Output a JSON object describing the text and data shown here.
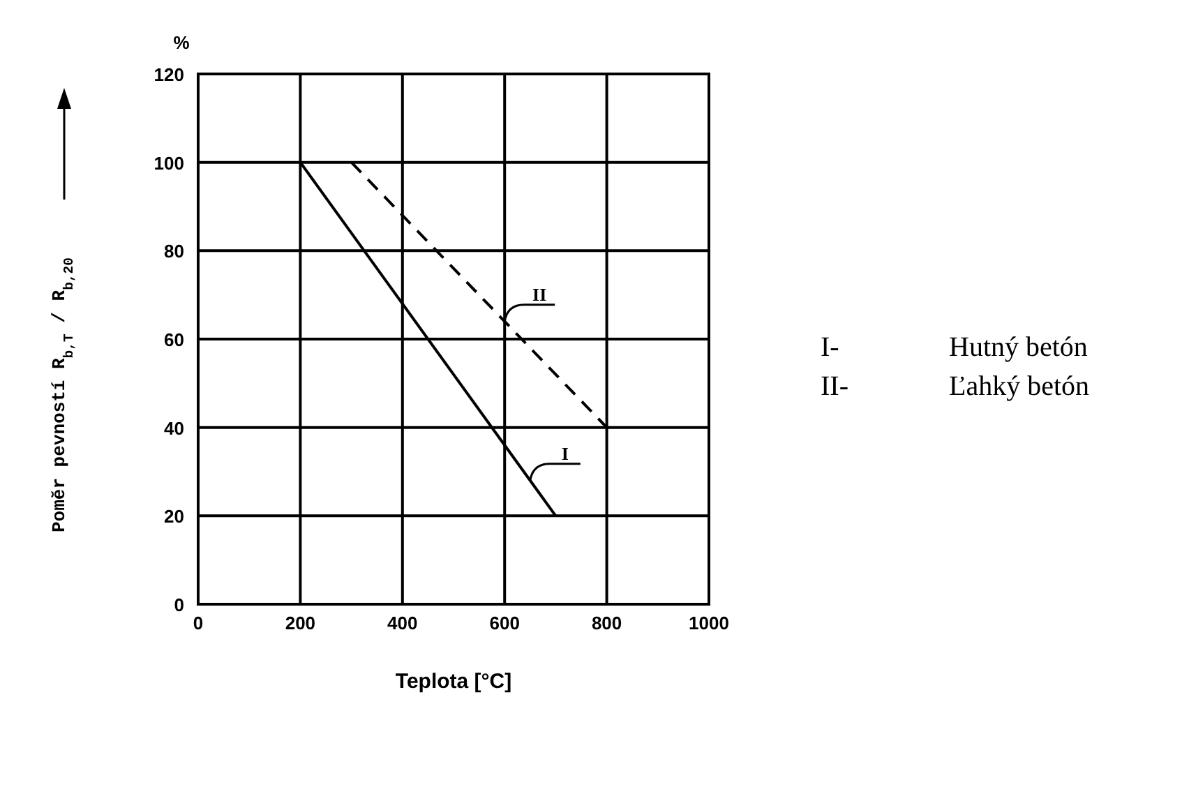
{
  "chart_data": {
    "type": "line",
    "xlabel": "Teplota [°C]",
    "ylabel": "Pomĕr pevností  R$_{b,T}$ / R$_{b,20}$",
    "xlim": [
      0,
      1000
    ],
    "xticks": [
      0,
      200,
      400,
      600,
      800,
      1000
    ],
    "ylim": [
      0,
      120
    ],
    "yticks": [
      0,
      20,
      40,
      60,
      80,
      100,
      120
    ],
    "grid": true,
    "marker": "none",
    "series": [
      {
        "name": "I",
        "color": "#000000",
        "line_style": "solid",
        "x": [
          200,
          700
        ],
        "values": [
          100,
          20
        ]
      },
      {
        "name": "II",
        "color": "#000000",
        "line_style": "dashed",
        "x": [
          300,
          800
        ],
        "values": [
          100,
          40
        ]
      }
    ],
    "annotations": [
      "%",
      "I-  Hutný betón",
      "II-  Ľahký betón"
    ]
  }
}
